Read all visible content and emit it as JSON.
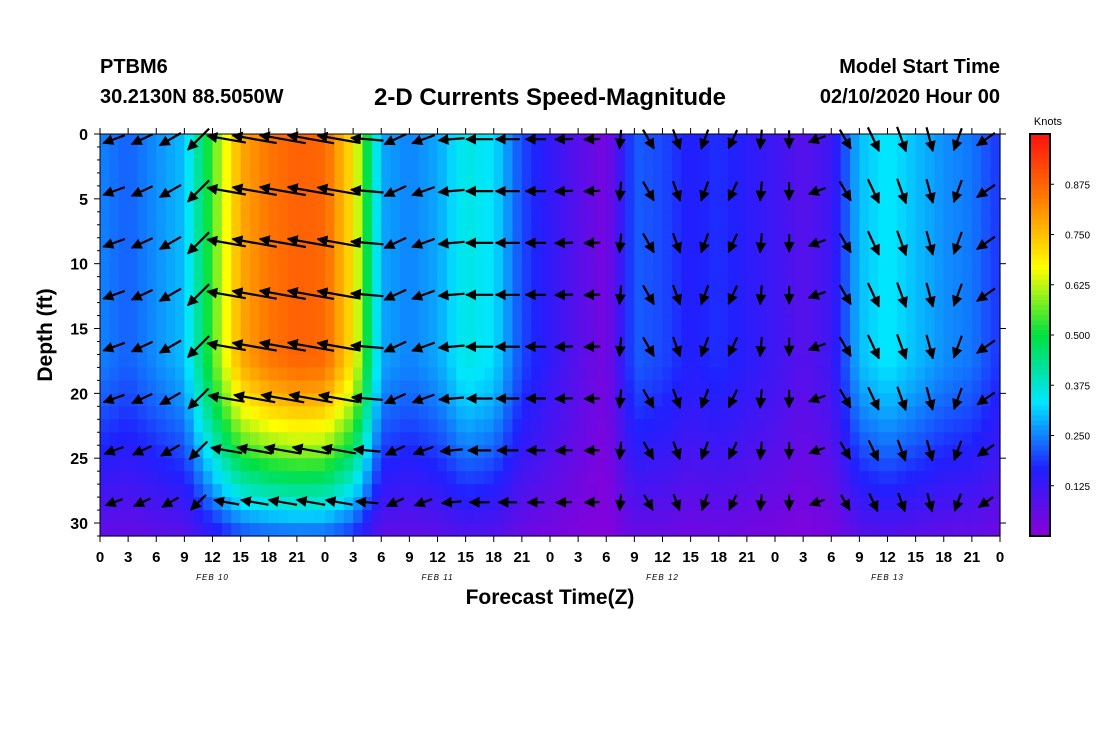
{
  "header": {
    "station": "PTBM6",
    "location": "30.2130N 88.5050W",
    "title": "2-D Currents Speed-Magnitude",
    "start_label": "Model Start Time",
    "start_value": "02/10/2020 Hour 00"
  },
  "chart_data": {
    "type": "heatmap",
    "title": "2-D Currents Speed-Magnitude",
    "xlabel": "Forecast Time(Z)",
    "ylabel": "Depth (ft)",
    "x_tick_labels": [
      "0",
      "3",
      "6",
      "9",
      "12",
      "15",
      "18",
      "21",
      "0",
      "3",
      "6",
      "9",
      "12",
      "15",
      "18",
      "21",
      "0",
      "3",
      "6",
      "9",
      "12",
      "15",
      "18",
      "21",
      "0",
      "3",
      "6",
      "9",
      "12",
      "15",
      "18",
      "21",
      "0"
    ],
    "day_labels": [
      "FEB 10",
      "FEB 11",
      "FEB 12",
      "FEB 13"
    ],
    "xlim_hours": [
      0,
      96
    ],
    "ylim_depth_ft": [
      0,
      31
    ],
    "y_ticks": [
      0,
      5,
      10,
      15,
      20,
      25,
      30
    ],
    "colorbar": {
      "label": "Knots",
      "ticks": [
        "0.875",
        "0.750",
        "0.625",
        "0.500",
        "0.375",
        "0.250",
        "0.125"
      ],
      "tick_values": [
        0.875,
        0.75,
        0.625,
        0.5,
        0.375,
        0.25,
        0.125
      ],
      "range": [
        0,
        1.0
      ],
      "colors": [
        "#8a00d8",
        "#2020ff",
        "#00e6ff",
        "#00e040",
        "#ffff00",
        "#ff8000",
        "#ff1010"
      ]
    },
    "speed_profile_by_hour": [
      {
        "hour": 0,
        "speed_kn": 0.25
      },
      {
        "hour": 3,
        "speed_kn": 0.22
      },
      {
        "hour": 6,
        "speed_kn": 0.26
      },
      {
        "hour": 9,
        "speed_kn": 0.3
      },
      {
        "hour": 12,
        "speed_kn": 0.55
      },
      {
        "hour": 15,
        "speed_kn": 0.78
      },
      {
        "hour": 18,
        "speed_kn": 0.85
      },
      {
        "hour": 21,
        "speed_kn": 0.88
      },
      {
        "hour": 24,
        "speed_kn": 0.87
      },
      {
        "hour": 27,
        "speed_kn": 0.7
      },
      {
        "hour": 30,
        "speed_kn": 0.28
      },
      {
        "hour": 33,
        "speed_kn": 0.25
      },
      {
        "hour": 36,
        "speed_kn": 0.28
      },
      {
        "hour": 39,
        "speed_kn": 0.36
      },
      {
        "hour": 42,
        "speed_kn": 0.33
      },
      {
        "hour": 45,
        "speed_kn": 0.2
      },
      {
        "hour": 48,
        "speed_kn": 0.14
      },
      {
        "hour": 51,
        "speed_kn": 0.08
      },
      {
        "hour": 54,
        "speed_kn": 0.03
      },
      {
        "hour": 57,
        "speed_kn": 0.22
      },
      {
        "hour": 60,
        "speed_kn": 0.2
      },
      {
        "hour": 63,
        "speed_kn": 0.16
      },
      {
        "hour": 66,
        "speed_kn": 0.18
      },
      {
        "hour": 69,
        "speed_kn": 0.15
      },
      {
        "hour": 72,
        "speed_kn": 0.12
      },
      {
        "hour": 75,
        "speed_kn": 0.08
      },
      {
        "hour": 78,
        "speed_kn": 0.12
      },
      {
        "hour": 81,
        "speed_kn": 0.3
      },
      {
        "hour": 84,
        "speed_kn": 0.34
      },
      {
        "hour": 87,
        "speed_kn": 0.3
      },
      {
        "hour": 90,
        "speed_kn": 0.26
      },
      {
        "hour": 93,
        "speed_kn": 0.24
      },
      {
        "hour": 96,
        "speed_kn": 0.18
      }
    ],
    "arrow_depths_ft": [
      0,
      4,
      8,
      12,
      16,
      20,
      24,
      28
    ],
    "arrow_direction_deg_by_hour": [
      {
        "hour": 0,
        "dir": 200
      },
      {
        "hour": 3,
        "dir": 205
      },
      {
        "hour": 6,
        "dir": 210
      },
      {
        "hour": 9,
        "dir": 225
      },
      {
        "hour": 12,
        "dir": 170
      },
      {
        "hour": 15,
        "dir": 170
      },
      {
        "hour": 18,
        "dir": 170
      },
      {
        "hour": 21,
        "dir": 170
      },
      {
        "hour": 24,
        "dir": 170
      },
      {
        "hour": 27,
        "dir": 175
      },
      {
        "hour": 30,
        "dir": 205
      },
      {
        "hour": 33,
        "dir": 200
      },
      {
        "hour": 36,
        "dir": 185
      },
      {
        "hour": 39,
        "dir": 180
      },
      {
        "hour": 42,
        "dir": 180
      },
      {
        "hour": 45,
        "dir": 180
      },
      {
        "hour": 48,
        "dir": 182
      },
      {
        "hour": 51,
        "dir": 182
      },
      {
        "hour": 54,
        "dir": 265
      },
      {
        "hour": 57,
        "dir": 300
      },
      {
        "hour": 60,
        "dir": 290
      },
      {
        "hour": 63,
        "dir": 250
      },
      {
        "hour": 66,
        "dir": 245
      },
      {
        "hour": 69,
        "dir": 265
      },
      {
        "hour": 72,
        "dir": 270
      },
      {
        "hour": 75,
        "dir": 200
      },
      {
        "hour": 78,
        "dir": 300
      },
      {
        "hour": 81,
        "dir": 295
      },
      {
        "hour": 84,
        "dir": 290
      },
      {
        "hour": 87,
        "dir": 285
      },
      {
        "hour": 90,
        "dir": 250
      },
      {
        "hour": 93,
        "dir": 215
      },
      {
        "hour": 96,
        "dir": 190
      }
    ]
  }
}
